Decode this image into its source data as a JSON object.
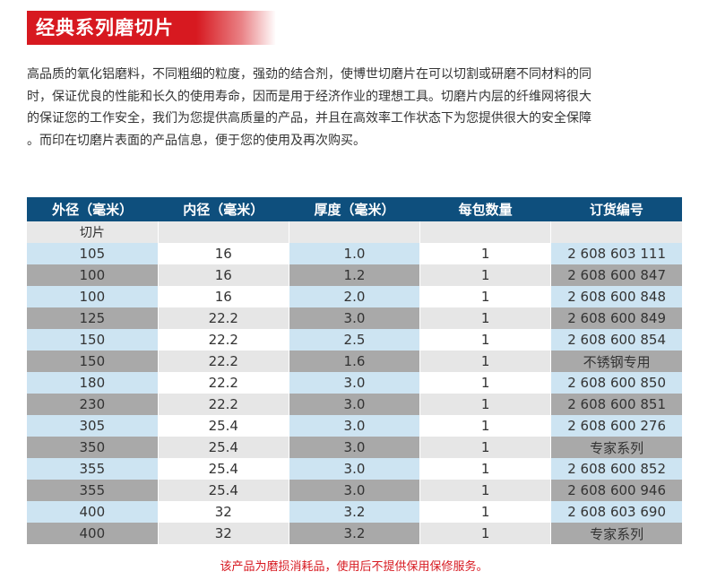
{
  "banner": {
    "title": "经典系列磨切片"
  },
  "intro": {
    "lines": [
      "高品质的氧化铝磨料，不同粗细的粒度，强劲的结合剂，使博世切磨片在可以切割或研磨不同材料的同",
      "时，保证优良的性能和长久的使用寿命，因而是用于经济作业的理想工具。切磨片内层的纤维网将很大",
      "的保证您的工作安全，我们为您提供高质量的产品，并且在高效率工作状态下为您提供很大的安全保障",
      "。而印在切磨片表面的产品信息，便于您的使用及再次购买。"
    ]
  },
  "table": {
    "headers": [
      "外径（毫米）",
      "内径（毫米）",
      "厚度（毫米）",
      "每包数量",
      "订货编号"
    ],
    "section_label": "切片",
    "rows": [
      [
        "105",
        "16",
        "1.0",
        "1",
        "2 608 603 111"
      ],
      [
        "100",
        "16",
        "1.2",
        "1",
        "2 608 600 847"
      ],
      [
        "100",
        "16",
        "2.0",
        "1",
        "2 608 600 848"
      ],
      [
        "125",
        "22.2",
        "3.0",
        "1",
        "2 608 600 849"
      ],
      [
        "150",
        "22.2",
        "2.5",
        "1",
        "2 608 600 854"
      ],
      [
        "150",
        "22.2",
        "1.6",
        "1",
        "不锈钢专用"
      ],
      [
        "180",
        "22.2",
        "3.0",
        "1",
        "2 608 600 850"
      ],
      [
        "230",
        "22.2",
        "3.0",
        "1",
        "2 608 600 851"
      ],
      [
        "305",
        "25.4",
        "3.0",
        "1",
        "2 608 600 276"
      ],
      [
        "350",
        "25.4",
        "3.0",
        "1",
        "专家系列"
      ],
      [
        "355",
        "25.4",
        "3.0",
        "1",
        "2 608 600 852"
      ],
      [
        "355",
        "25.4",
        "3.0",
        "1",
        "2 608 600 946"
      ],
      [
        "400",
        "32",
        "3.2",
        "1",
        "2 608 603 690"
      ],
      [
        "400",
        "32",
        "3.2",
        "1",
        "专家系列"
      ]
    ]
  },
  "footnote": "该产品为磨损消耗品，使用后不提供保用保修服务。",
  "colors": {
    "banner_red": "#d71920",
    "header_blue": "#0e4f7d",
    "row_light_blue": "#cde4f2",
    "row_dark_gray": "#a9a9a9",
    "footnote_red": "#d71920"
  }
}
